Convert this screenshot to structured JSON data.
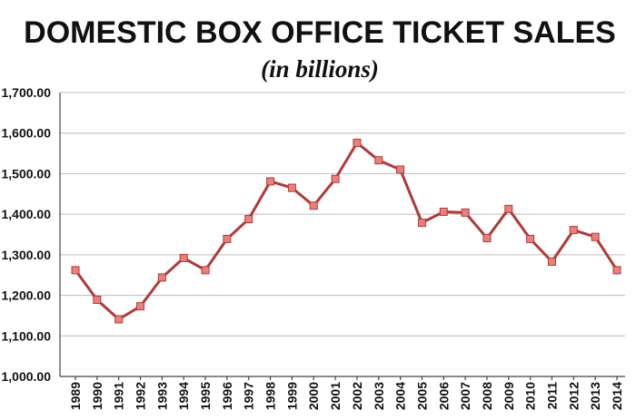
{
  "chart_data": {
    "type": "line",
    "title": "DOMESTIC BOX OFFICE TICKET SALES",
    "subtitle": "(in billions)",
    "xlabel": "",
    "ylabel": "",
    "ylim": [
      1000,
      1700
    ],
    "yticks": [
      "1,000.00",
      "1,100.00",
      "1,200.00",
      "1,300.00",
      "1,400.00",
      "1,500.00",
      "1,600.00",
      "1,700.00"
    ],
    "grid": true,
    "legend": "none",
    "categories": [
      "1989",
      "1990",
      "1991",
      "1992",
      "1993",
      "1994",
      "1995",
      "1996",
      "1997",
      "1998",
      "1999",
      "2000",
      "2001",
      "2002",
      "2003",
      "2004",
      "2005",
      "2006",
      "2007",
      "2008",
      "2009",
      "2010",
      "2011",
      "2012",
      "2013",
      "2014"
    ],
    "series": [
      {
        "values": [
          1262,
          1189,
          1141,
          1173,
          1244,
          1292,
          1262,
          1339,
          1388,
          1481,
          1465,
          1421,
          1487,
          1576,
          1533,
          1510,
          1379,
          1406,
          1404,
          1341,
          1413,
          1339,
          1283,
          1361,
          1344,
          1262
        ],
        "color": "#b03a37",
        "marker_color": "#e8807c"
      }
    ]
  }
}
